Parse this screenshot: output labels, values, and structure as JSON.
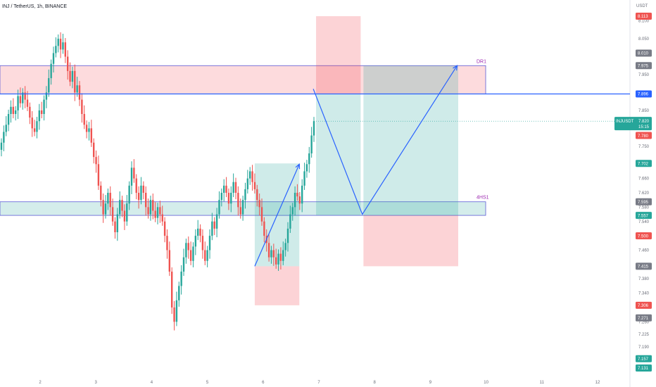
{
  "header": {
    "title": "INJ / TetherUS, 1h, BINANCE"
  },
  "price_scale": {
    "unit": "USDT"
  },
  "colors": {
    "up": "#26a69a",
    "down": "#ef5350",
    "line": "#2962ff",
    "zone_label": "#9c27b0"
  },
  "chart_data": {
    "type": "candlestick",
    "title": "INJ / TetherUS, 1h, BINANCE",
    "symbol": "INJUSDT",
    "y_unit": "USDT",
    "ylim": [
      7.131,
      8.113
    ],
    "x_ticks": [
      "2",
      "3",
      "4",
      "5",
      "6",
      "7",
      "8",
      "9",
      "10",
      "11",
      "12"
    ],
    "y_ticks": [
      "8.100",
      "8.050",
      "7.950",
      "7.850",
      "7.750",
      "7.660",
      "7.620",
      "7.580",
      "7.540",
      "7.460",
      "7.380",
      "7.340",
      "7.260",
      "7.225",
      "7.190"
    ],
    "price_badges": [
      {
        "value": "8.113",
        "color": "#ef5350"
      },
      {
        "value": "8.010",
        "color": "#787b86"
      },
      {
        "value": "7.975",
        "color": "#787b86"
      },
      {
        "value": "7.896",
        "color": "#2962ff"
      },
      {
        "value": "7.820",
        "color": "#26a69a",
        "label": "INJUSDT",
        "sub": "15:15"
      },
      {
        "value": "7.780",
        "color": "#ef5350"
      },
      {
        "value": "7.702",
        "color": "#26a69a"
      },
      {
        "value": "7.595",
        "color": "#787b86"
      },
      {
        "value": "7.557",
        "color": "#26a69a"
      },
      {
        "value": "7.500",
        "color": "#ef5350"
      },
      {
        "value": "7.415",
        "color": "#787b86"
      },
      {
        "value": "7.306",
        "color": "#ef5350"
      },
      {
        "value": "7.271",
        "color": "#787b86"
      },
      {
        "value": "7.157",
        "color": "#26a69a"
      },
      {
        "value": "7.131",
        "color": "#26a69a"
      }
    ],
    "zones": [
      {
        "name": "DR1",
        "top": 7.975,
        "bottom": 7.896,
        "color": "red"
      },
      {
        "name": "4HS1",
        "top": 7.595,
        "bottom": 7.557,
        "color": "green"
      }
    ],
    "horizontal_line": 7.896,
    "current_price_line": 7.82,
    "positions": [
      {
        "entry": 7.415,
        "target": 7.702,
        "stop": 7.306,
        "from_day": 5.85,
        "to_day": 6.65
      },
      {
        "entry": 7.896,
        "target": 7.557,
        "stop": 8.113,
        "from_day": 6.95,
        "to_day": 7.75
      },
      {
        "entry": 7.557,
        "target": 7.975,
        "stop": 7.415,
        "from_day": 7.8,
        "to_day": 9.5
      }
    ],
    "projection_path": [
      {
        "day": 6.9,
        "price": 7.91
      },
      {
        "day": 7.78,
        "price": 7.56
      },
      {
        "day": 9.48,
        "price": 7.975
      }
    ],
    "rise_arrow": [
      {
        "day": 5.85,
        "price": 7.415
      },
      {
        "day": 6.65,
        "price": 7.7
      }
    ],
    "series": [
      {
        "close": [
          7.76,
          7.79,
          7.81,
          7.84,
          7.86,
          7.84,
          7.85,
          7.89,
          7.87,
          7.9,
          7.88,
          7.86,
          7.83,
          7.8,
          7.79,
          7.82,
          7.85,
          7.84,
          7.88,
          7.9,
          7.94,
          7.98,
          8.01,
          8.03,
          8.05,
          8.02,
          8.04,
          8.0,
          7.96,
          7.93,
          7.96,
          7.9,
          7.92,
          7.88,
          7.84,
          7.81,
          7.79,
          7.8,
          7.76,
          7.72,
          7.7,
          7.64,
          7.6,
          7.56,
          7.59,
          7.62,
          7.58,
          7.54,
          7.51,
          7.56,
          7.6,
          7.57,
          7.54,
          7.59,
          7.64,
          7.69,
          7.66,
          7.62,
          7.6,
          7.64,
          7.62,
          7.58,
          7.56,
          7.6,
          7.57,
          7.55,
          7.58,
          7.56,
          7.54,
          7.5,
          7.46,
          7.4,
          7.3,
          7.26,
          7.32,
          7.36,
          7.4,
          7.44,
          7.48,
          7.46,
          7.43,
          7.47,
          7.5,
          7.52,
          7.5,
          7.46,
          7.43,
          7.46,
          7.5,
          7.54,
          7.52,
          7.56,
          7.6,
          7.62,
          7.64,
          7.62,
          7.59,
          7.62,
          7.65,
          7.62,
          7.58,
          7.56,
          7.6,
          7.63,
          7.66,
          7.68,
          7.65,
          7.63,
          7.6,
          7.58,
          7.54,
          7.5,
          7.48,
          7.44,
          7.46,
          7.44,
          7.42,
          7.45,
          7.43,
          7.46,
          7.48,
          7.52,
          7.56,
          7.58,
          7.62,
          7.61,
          7.59,
          7.64,
          7.68,
          7.7,
          7.73,
          7.78,
          7.82
        ]
      }
    ]
  }
}
